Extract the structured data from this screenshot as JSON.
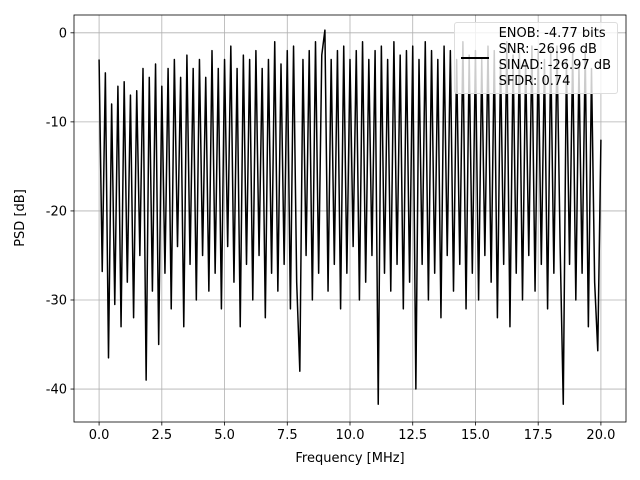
{
  "chart_data": {
    "type": "line",
    "xlabel": "Frequency [MHz]",
    "ylabel": "PSD [dB]",
    "x": [
      0,
      0.125,
      0.25,
      0.375,
      0.5,
      0.625,
      0.75,
      0.875,
      1,
      1.125,
      1.25,
      1.375,
      1.5,
      1.625,
      1.75,
      1.875,
      2,
      2.125,
      2.25,
      2.375,
      2.5,
      2.625,
      2.75,
      2.875,
      3,
      3.125,
      3.25,
      3.375,
      3.5,
      3.625,
      3.75,
      3.875,
      4,
      4.125,
      4.25,
      4.375,
      4.5,
      4.625,
      4.75,
      4.875,
      5,
      5.125,
      5.25,
      5.375,
      5.5,
      5.625,
      5.75,
      5.875,
      6,
      6.125,
      6.25,
      6.375,
      6.5,
      6.625,
      6.75,
      6.875,
      7,
      7.125,
      7.25,
      7.375,
      7.5,
      7.625,
      7.75,
      7.875,
      8,
      8.125,
      8.25,
      8.375,
      8.5,
      8.625,
      8.75,
      8.875,
      9,
      9.125,
      9.25,
      9.375,
      9.5,
      9.625,
      9.75,
      9.875,
      10,
      10.125,
      10.25,
      10.375,
      10.5,
      10.625,
      10.75,
      10.875,
      11,
      11.125,
      11.25,
      11.375,
      11.5,
      11.625,
      11.75,
      11.875,
      12,
      12.125,
      12.25,
      12.375,
      12.5,
      12.625,
      12.75,
      12.875,
      13,
      13.125,
      13.25,
      13.375,
      13.5,
      13.625,
      13.75,
      13.875,
      14,
      14.125,
      14.25,
      14.375,
      14.5,
      14.625,
      14.75,
      14.875,
      15,
      15.125,
      15.25,
      15.375,
      15.5,
      15.625,
      15.75,
      15.875,
      16,
      16.125,
      16.25,
      16.375,
      16.5,
      16.625,
      16.75,
      16.875,
      17,
      17.125,
      17.25,
      17.375,
      17.5,
      17.625,
      17.75,
      17.875,
      18,
      18.125,
      18.25,
      18.375,
      18.5,
      18.625,
      18.75,
      18.875,
      19,
      19.125,
      19.25,
      19.375,
      19.5,
      19.625,
      19.75,
      19.875,
      20
    ],
    "series": [
      {
        "name": "ENOB: -4.77 bits\nSNR: -26.96 dB\nSINAD: -26.97 dB\nSFDR: 0.74",
        "color": "#000000",
        "values": [
          -3,
          -26.8,
          -4.5,
          -36.5,
          -8,
          -30.5,
          -6,
          -33,
          -5.5,
          -28,
          -7,
          -32,
          -6.5,
          -25,
          -4,
          -39,
          -5,
          -29,
          -3.5,
          -35,
          -6,
          -27,
          -4,
          -31,
          -3,
          -24,
          -5,
          -33,
          -2.5,
          -26,
          -4,
          -30,
          -3,
          -25,
          -5,
          -29,
          -2,
          -27,
          -4,
          -31,
          -3,
          -24,
          -1.5,
          -28,
          -4,
          -33,
          -2.5,
          -26,
          -3,
          -30,
          -2,
          -25,
          -4,
          -32,
          -3,
          -27,
          -1,
          -29,
          -3.5,
          -26,
          -2,
          -31,
          -1.5,
          -28,
          -38,
          -3,
          -25,
          -2,
          -30,
          -1,
          -27,
          -2.5,
          0.3,
          -29,
          -3,
          -26,
          -2,
          -31,
          -1.5,
          -27,
          -3,
          -24,
          -2,
          -30,
          -1,
          -28,
          -3,
          -25,
          -2,
          -41.7,
          -1.5,
          -27,
          -3,
          -29,
          -1,
          -26,
          -2.5,
          -31,
          -2,
          -28,
          -1.5,
          -40,
          -3,
          -26,
          -1,
          -30,
          -2,
          -27,
          -3,
          -32,
          -1.5,
          -25,
          -2,
          -29,
          -3,
          -26,
          -1,
          -31,
          -2.5,
          -27,
          -2,
          -30,
          -3,
          -25,
          -1.5,
          -28,
          -2,
          -32,
          -3,
          -26,
          -1,
          -33,
          -2.5,
          -27,
          -2,
          -30,
          -3,
          -25,
          -1.5,
          -29,
          -2,
          -26,
          -3,
          -31,
          -2,
          -27,
          -1.5,
          -24,
          -41.7,
          -3,
          -26,
          -2,
          -30,
          -3.5,
          -27,
          -2,
          -33,
          -4,
          -28,
          -35.7,
          -12
        ]
      }
    ],
    "xlim": [
      -1.0,
      21.0
    ],
    "ylim": [
      -43.7,
      2.0
    ],
    "xticks": [
      {
        "value": 0,
        "label": "0.0"
      },
      2.5,
      {
        "value": 5,
        "label": "5.0"
      },
      7.5,
      {
        "value": 10,
        "label": "10.0"
      },
      12.5,
      {
        "value": 15,
        "label": "15.0"
      },
      17.5,
      {
        "value": 20,
        "label": "20.0"
      }
    ],
    "yticks": [
      -40,
      -30,
      -20,
      -10,
      0
    ],
    "grid": true,
    "legend": "upper right"
  }
}
